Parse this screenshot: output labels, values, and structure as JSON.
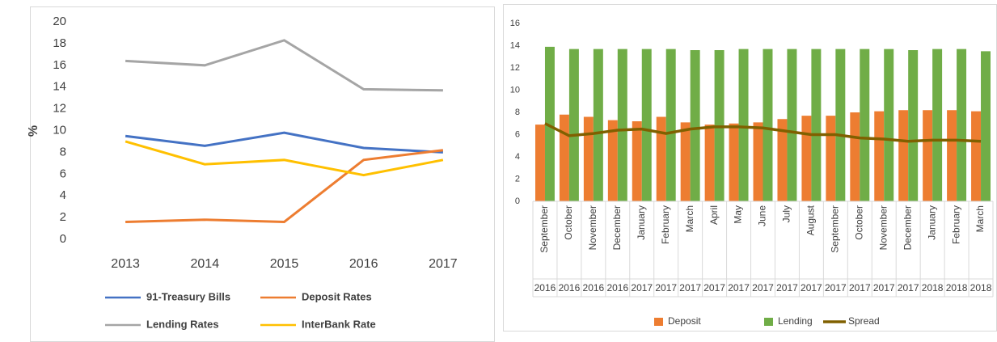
{
  "chart_data": [
    {
      "type": "line",
      "y_label": "%",
      "categories": [
        "2013",
        "2014",
        "2015",
        "2016",
        "2017"
      ],
      "ylim": [
        0,
        20
      ],
      "yticks": [
        0,
        2,
        4,
        6,
        8,
        10,
        12,
        14,
        16,
        18,
        20
      ],
      "grid": false,
      "series": [
        {
          "name": "91-Treasury Bills",
          "color": "#4472c4",
          "values": [
            9.5,
            8.6,
            9.8,
            8.4,
            8.0
          ]
        },
        {
          "name": "Deposit Rates",
          "color": "#ed7d31",
          "values": [
            1.6,
            1.8,
            1.6,
            7.3,
            8.2
          ]
        },
        {
          "name": "Lending Rates",
          "color": "#a5a5a5",
          "values": [
            16.4,
            16.0,
            18.3,
            13.8,
            13.7
          ]
        },
        {
          "name": "InterBank Rate",
          "color": "#ffc000",
          "values": [
            9.0,
            6.9,
            7.3,
            5.9,
            7.3
          ]
        }
      ]
    },
    {
      "type": "combo",
      "categories": [
        "September",
        "October",
        "November",
        "December",
        "January",
        "February",
        "March",
        "April",
        "May",
        "June",
        "July",
        "August",
        "September",
        "October",
        "November",
        "December",
        "January",
        "February",
        "March"
      ],
      "category_groups": [
        "2016",
        "2016",
        "2016",
        "2016",
        "2017",
        "2017",
        "2017",
        "2017",
        "2017",
        "2017",
        "2017",
        "2017",
        "2017",
        "2017",
        "2017",
        "2017",
        "2018",
        "2018",
        "2018"
      ],
      "ylim": [
        0,
        16
      ],
      "yticks": [
        0,
        2,
        4,
        6,
        8,
        10,
        12,
        14,
        16
      ],
      "grid": false,
      "series": [
        {
          "name": "Deposit",
          "kind": "bar",
          "color": "#ed7d31",
          "values": [
            6.9,
            7.8,
            7.6,
            7.3,
            7.2,
            7.6,
            7.1,
            6.9,
            7.0,
            7.1,
            7.4,
            7.7,
            7.7,
            8.0,
            8.1,
            8.2,
            8.2,
            8.2,
            8.1
          ]
        },
        {
          "name": "Lending",
          "kind": "bar",
          "color": "#70ad47",
          "values": [
            13.9,
            13.7,
            13.7,
            13.7,
            13.7,
            13.7,
            13.6,
            13.6,
            13.7,
            13.7,
            13.7,
            13.7,
            13.7,
            13.7,
            13.7,
            13.6,
            13.7,
            13.7,
            13.5
          ]
        },
        {
          "name": "Spread",
          "kind": "line",
          "color": "#806000",
          "values": [
            7.0,
            5.9,
            6.1,
            6.4,
            6.5,
            6.1,
            6.5,
            6.7,
            6.7,
            6.6,
            6.3,
            6.0,
            6.0,
            5.7,
            5.6,
            5.4,
            5.5,
            5.5,
            5.4
          ]
        }
      ]
    }
  ]
}
